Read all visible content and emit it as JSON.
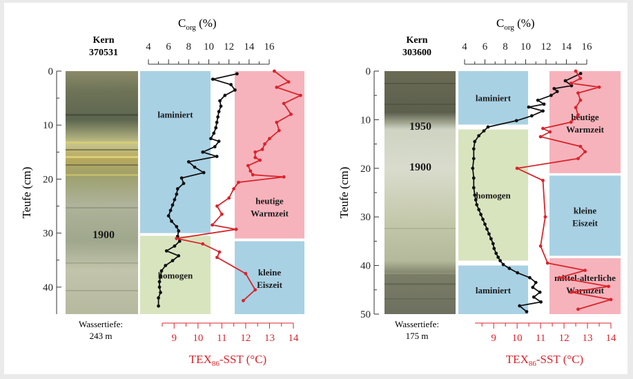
{
  "chart_data": [
    {
      "type": "line",
      "core_label": "Kern",
      "core_id": "370531",
      "water_depth_label": "Wassertiefe:",
      "water_depth": "243 m",
      "ylabel": "Teufe (cm)",
      "yticks": [
        "0",
        "10",
        "20",
        "30",
        "40"
      ],
      "ylim": [
        0,
        45
      ],
      "corg_label": "C",
      "corg_sub": "org",
      "corg_unit": " (%)",
      "corg_ticks": [
        "4",
        "6",
        "8",
        "10",
        "12",
        "14",
        "16"
      ],
      "corg_lim": [
        4,
        16
      ],
      "sst_label_pre": "TEX",
      "sst_sub": "86",
      "sst_label_post": "-SST (°C)",
      "sst_ticks": [
        "9",
        "10",
        "11",
        "12",
        "13",
        "14"
      ],
      "sst_lim": [
        8.5,
        14
      ],
      "zones": [
        {
          "label": "laminiert",
          "col": "corg",
          "from": 0,
          "to": 30,
          "color": "#a9d1e4"
        },
        {
          "label": "homogen",
          "col": "corg",
          "from": 30.5,
          "to": 45,
          "color": "#d8e4be"
        },
        {
          "label": "heutige Warmzeit",
          "col": "sst",
          "from": 0,
          "to": 31,
          "color": "#f6b3bc"
        },
        {
          "label": "kleine Eiszeit",
          "col": "sst",
          "from": 31.5,
          "to": 45,
          "color": "#a9d1e4"
        }
      ],
      "year_markers": [
        {
          "label": "1900",
          "depth": 31
        }
      ],
      "series": [
        {
          "name": "C_org",
          "color": "#111111",
          "axis": "corg",
          "x": [
            12.8,
            10.4,
            12.2,
            12.6,
            11.6,
            11.1,
            11.2,
            11.0,
            10.9,
            10.8,
            10.7,
            10.5,
            10.2,
            11.0,
            10.6,
            9.4,
            10.8,
            8.0,
            8.6,
            9.5,
            7.3,
            7.5,
            6.9,
            6.8,
            6.6,
            6.4,
            6.2,
            6.0,
            6.3,
            6.8,
            7.0,
            6.9,
            7.1,
            6.6,
            5.8,
            7.0,
            6.4,
            5.7,
            5.3,
            5.2,
            5.1,
            5.1,
            5.2,
            5.0,
            5.0
          ],
          "y": [
            0.5,
            1.5,
            2.5,
            3.5,
            4.5,
            5.5,
            6.5,
            7.5,
            8.5,
            9.5,
            10.5,
            11.5,
            12.5,
            13,
            14,
            15,
            15.8,
            16.8,
            17.8,
            18.8,
            19.8,
            20.8,
            21.8,
            22.8,
            23.8,
            24.8,
            25.8,
            26.8,
            27.8,
            28.8,
            29.6,
            30.6,
            31.5,
            32.4,
            33.3,
            34.2,
            35.1,
            36,
            37,
            38,
            39,
            40,
            41,
            42,
            43.5
          ]
        },
        {
          "name": "TEX86-SST",
          "color": "#d9242b",
          "axis": "sst",
          "x": [
            13.2,
            13.8,
            13.3,
            14.3,
            13.6,
            13.9,
            13.3,
            13.4,
            13.0,
            12.8,
            12.7,
            12.4,
            12.4,
            12.6,
            12.1,
            12.2,
            12.3,
            13.6,
            11.7,
            11.5,
            11.3,
            10.8,
            11.0,
            10.6,
            11.6,
            9.1,
            10.2,
            10.9,
            10.8,
            12.0,
            12.4,
            11.9
          ],
          "y": [
            0,
            2,
            3,
            4.5,
            6,
            8,
            9.5,
            11,
            12.5,
            13.5,
            14.5,
            15,
            16,
            16.5,
            17.5,
            18.5,
            19.2,
            19.6,
            20.6,
            21.8,
            23.5,
            25,
            26.5,
            28.5,
            29.3,
            31,
            32,
            33.5,
            34.5,
            37.5,
            40.5,
            42.5
          ]
        }
      ]
    },
    {
      "type": "line",
      "core_label": "Kern",
      "core_id": "303600",
      "water_depth_label": "Wassertiefe:",
      "water_depth": "175 m",
      "ylabel": "Teufe (cm)",
      "yticks": [
        "0",
        "10",
        "20",
        "30",
        "40",
        "50"
      ],
      "ylim": [
        0,
        50
      ],
      "corg_label": "C",
      "corg_sub": "org",
      "corg_unit": " (%)",
      "corg_ticks": [
        "4",
        "6",
        "8",
        "10",
        "12",
        "14",
        "16"
      ],
      "corg_lim": [
        4,
        16
      ],
      "sst_label_pre": "TEX",
      "sst_sub": "86",
      "sst_label_post": "-SST (°C)",
      "sst_ticks": [
        "9",
        "10",
        "11",
        "12",
        "13",
        "14"
      ],
      "sst_lim": [
        8.2,
        14
      ],
      "zones": [
        {
          "label": "laminiert",
          "col": "corg",
          "from": 0,
          "to": 11,
          "color": "#a9d1e4"
        },
        {
          "label": "homogen",
          "col": "corg",
          "from": 12,
          "to": 39,
          "color": "#d8e4be"
        },
        {
          "label": "laminiert",
          "col": "corg",
          "from": 40,
          "to": 50,
          "color": "#a9d1e4"
        },
        {
          "label": "heutige Warmzeit",
          "col": "sst",
          "from": 0,
          "to": 21,
          "color": "#f6b3bc"
        },
        {
          "label": "kleine Eiszeit",
          "col": "sst",
          "from": 21.5,
          "to": 38,
          "color": "#a9d1e4"
        },
        {
          "label": "mittel-alterliche Warmzeit",
          "col": "sst",
          "from": 38.5,
          "to": 50,
          "color": "#f6b3bc"
        }
      ],
      "year_markers": [
        {
          "label": "1950",
          "depth": 11
        },
        {
          "label": "1900",
          "depth": 19.5
        }
      ],
      "series": [
        {
          "name": "C_org",
          "color": "#111111",
          "axis": "corg",
          "x": [
            15.4,
            13.9,
            14.5,
            12.8,
            13.1,
            12.5,
            11.2,
            11.8,
            10.3,
            11.7,
            10.6,
            9.1,
            6.3,
            5.9,
            5.4,
            5.0,
            4.9,
            4.9,
            4.8,
            4.9,
            4.9,
            5.0,
            5.1,
            5.2,
            5.4,
            5.6,
            5.8,
            6.0,
            6.2,
            6.4,
            6.6,
            6.8,
            6.9,
            7.1,
            7.3,
            7.5,
            7.8,
            8.4,
            9.2,
            10.4,
            11.0,
            10.7,
            11.4,
            10.8,
            11.5,
            9.4,
            10.1
          ],
          "y": [
            0.5,
            2,
            3,
            3.6,
            4.2,
            5,
            6,
            6.8,
            7.4,
            8.2,
            9.2,
            10.2,
            11.5,
            12.3,
            13.3,
            14.5,
            16,
            18,
            20,
            22,
            24,
            25.5,
            26.5,
            27.5,
            28.5,
            29.5,
            30.5,
            31.5,
            32.5,
            33.5,
            34.5,
            35.5,
            36.5,
            37.5,
            38.3,
            39,
            39.8,
            40.6,
            41.5,
            42.5,
            43.5,
            44.5,
            45.5,
            46.5,
            47.5,
            48.3,
            49.5
          ]
        },
        {
          "name": "TEX86-SST",
          "color": "#d9242b",
          "axis": "sst",
          "x": [
            12.5,
            12.7,
            12.3,
            13.5,
            12.6,
            12.7,
            12.5,
            12.6,
            12.3,
            11.1,
            11.4,
            11.0,
            12.7,
            12.9,
            12.6,
            10.0,
            11.1,
            11.2,
            11.0,
            11.3,
            12.9,
            11.8,
            13.9,
            12.3,
            14.0,
            12.6
          ],
          "y": [
            0,
            1.5,
            2.5,
            3.3,
            4.5,
            6,
            7.5,
            9,
            10.5,
            11.8,
            12.5,
            13.5,
            15.5,
            16.6,
            18,
            20,
            22.5,
            30,
            36,
            39.5,
            41,
            42.5,
            44.3,
            45.5,
            47,
            49
          ]
        }
      ]
    }
  ]
}
